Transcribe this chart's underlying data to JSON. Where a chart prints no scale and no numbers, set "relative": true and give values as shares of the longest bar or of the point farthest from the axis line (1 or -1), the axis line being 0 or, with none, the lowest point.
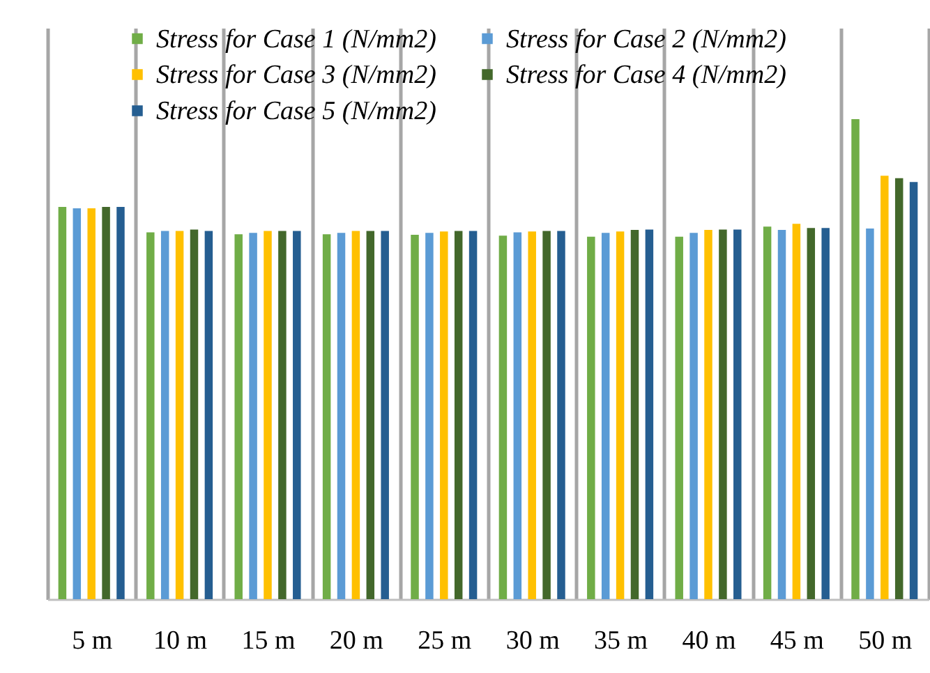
{
  "chart_data": {
    "type": "bar",
    "relative": true,
    "grid": "x",
    "legend": "top",
    "categories": [
      "5 m",
      "10 m",
      "15 m",
      "20 m",
      "25 m",
      "30 m",
      "35 m",
      "40 m",
      "45 m",
      "50 m"
    ],
    "series": [
      {
        "name": "Stress  for Case 1 (N/mm2)",
        "color": "#70ad47",
        "values": [
          0.817,
          0.764,
          0.76,
          0.76,
          0.759,
          0.757,
          0.755,
          0.755,
          0.776,
          1
        ]
      },
      {
        "name": "Stress  for Case 2 (N/mm2)",
        "color": "#5b9bd5",
        "values": [
          0.814,
          0.767,
          0.763,
          0.763,
          0.763,
          0.764,
          0.763,
          0.763,
          0.769,
          0.772
        ]
      },
      {
        "name": "Stress  for Case 3 (N/mm2)",
        "color": "#ffc000",
        "values": [
          0.814,
          0.767,
          0.767,
          0.767,
          0.766,
          0.766,
          0.766,
          0.769,
          0.782,
          0.882
        ]
      },
      {
        "name": "Stress  for Case 4 (N/mm2)",
        "color": "#43682b",
        "values": [
          0.817,
          0.77,
          0.767,
          0.767,
          0.767,
          0.767,
          0.769,
          0.77,
          0.773,
          0.877
        ]
      },
      {
        "name": "Stress  for Case 5 (N/mm2)",
        "color": "#255e91",
        "values": [
          0.817,
          0.767,
          0.767,
          0.767,
          0.767,
          0.767,
          0.77,
          0.77,
          0.773,
          0.869
        ]
      }
    ]
  }
}
